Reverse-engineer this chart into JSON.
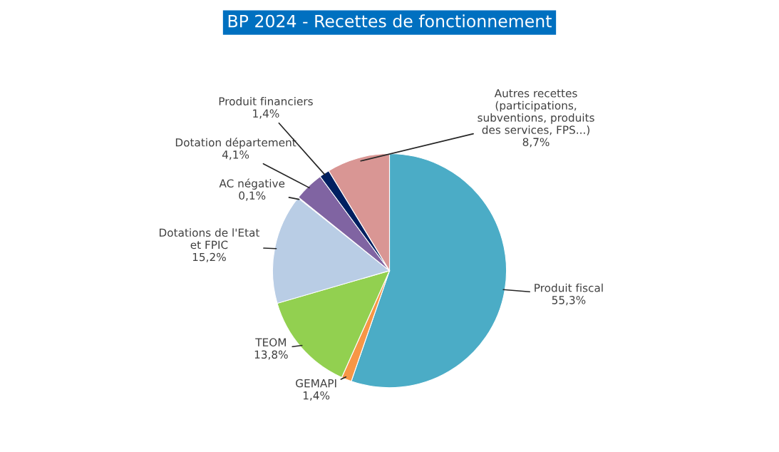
{
  "chart_data": {
    "type": "pie",
    "title": "BP 2024 - Recettes de fonctionnement",
    "categories": [
      "Produit fiscal",
      "GEMAPI",
      "TEOM",
      "Dotations de l'Etat\net FPIC",
      "AC négative",
      "Dotation département",
      "Produit financiers",
      "Autres recettes\n(participations,\nsubventions, produits\ndes services, FPS...)"
    ],
    "values": [
      55.3,
      1.4,
      13.8,
      15.2,
      0.1,
      4.1,
      1.4,
      8.7
    ],
    "value_labels": [
      "55,3%",
      "1,4%",
      "13,8%",
      "15,2%",
      "0,1%",
      "4,1%",
      "1,4%",
      "8,7%"
    ],
    "colors": [
      "#4bacc6",
      "#f79646",
      "#92d050",
      "#b9cde5",
      "#c0504d",
      "#8064a2",
      "#002060",
      "#d99694"
    ],
    "legend": false
  }
}
